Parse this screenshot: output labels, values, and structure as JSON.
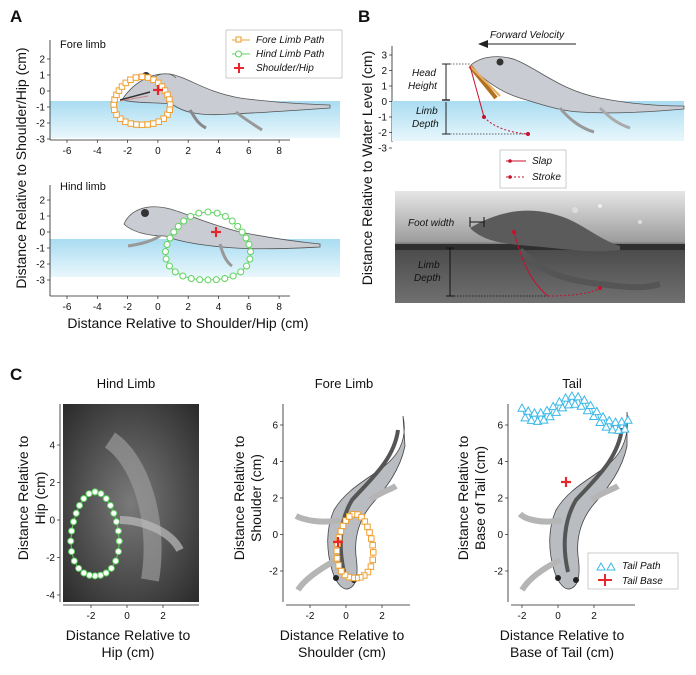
{
  "panel_letters": [
    "A",
    "B",
    "C"
  ],
  "panelA": {
    "fore": {
      "title": "Fore limb",
      "x_ticks": [
        "-6",
        "-4",
        "-2",
        "0",
        "2",
        "4",
        "6",
        "8"
      ],
      "y_ticks": [
        "2",
        "1",
        "0",
        "-1",
        "-2",
        "-3"
      ]
    },
    "hind": {
      "title": "Hind limb",
      "x_ticks": [
        "-6",
        "-4",
        "-2",
        "0",
        "2",
        "4",
        "6",
        "8"
      ],
      "y_ticks": [
        "2",
        "1",
        "0",
        "-1",
        "-2",
        "-3"
      ]
    },
    "legend": [
      "Fore Limb Path",
      "Hind Limb Path",
      "Shoulder/Hip"
    ],
    "ylabel": "Distance Relative to Shoulder/Hip (cm)",
    "xlabel": "Distance Relative to Shoulder/Hip (cm)"
  },
  "panelB": {
    "forward_velocity": "Forward Velocity",
    "head_height": [
      "Head",
      "Height"
    ],
    "limb_depth": [
      "Limb",
      "Depth"
    ],
    "y_ticks": [
      "3",
      "2",
      "1",
      "0",
      "-1",
      "-2",
      "-3"
    ],
    "legend": [
      "Slap",
      "Stroke"
    ],
    "foot_width": "Foot width",
    "photo_limb_depth": [
      "Limb",
      "Depth"
    ],
    "ylabel": "Distance Relative to Water Level (cm)"
  },
  "panelC": {
    "hind": {
      "title": "Hind Limb",
      "y_ticks": [
        "4",
        "2",
        "0",
        "-2",
        "-4"
      ],
      "x_ticks": [
        "-2",
        "0",
        "2"
      ],
      "ylabel": [
        "Distance Relative to",
        "Hip (cm)"
      ],
      "xlabel": [
        "Distance Relative to",
        "Hip (cm)"
      ]
    },
    "fore": {
      "title": "Fore Limb",
      "y_ticks": [
        "6",
        "4",
        "2",
        "0",
        "-2"
      ],
      "x_ticks": [
        "-2",
        "0",
        "2"
      ],
      "ylabel": [
        "Distance Relative to",
        "Shoulder (cm)"
      ],
      "xlabel": [
        "Distance Relative to",
        "Shoulder (cm)"
      ]
    },
    "tail": {
      "title": "Tail",
      "y_ticks": [
        "6",
        "4",
        "2",
        "0",
        "-2"
      ],
      "x_ticks": [
        "-2",
        "0",
        "2"
      ],
      "ylabel": [
        "Distance Relative to",
        "Base of Tail (cm)"
      ],
      "xlabel": [
        "Distance Relative to",
        "Base of Tail (cm)"
      ],
      "legend": [
        "Tail Path",
        "Tail Base"
      ]
    }
  },
  "colors": {
    "fore_limb": "#f0a030",
    "hind_limb": "#5fd35f",
    "marker": "#e8262c",
    "tail": "#3bb8e8",
    "water": "#bfe6f5",
    "slap": "#c8102e"
  }
}
